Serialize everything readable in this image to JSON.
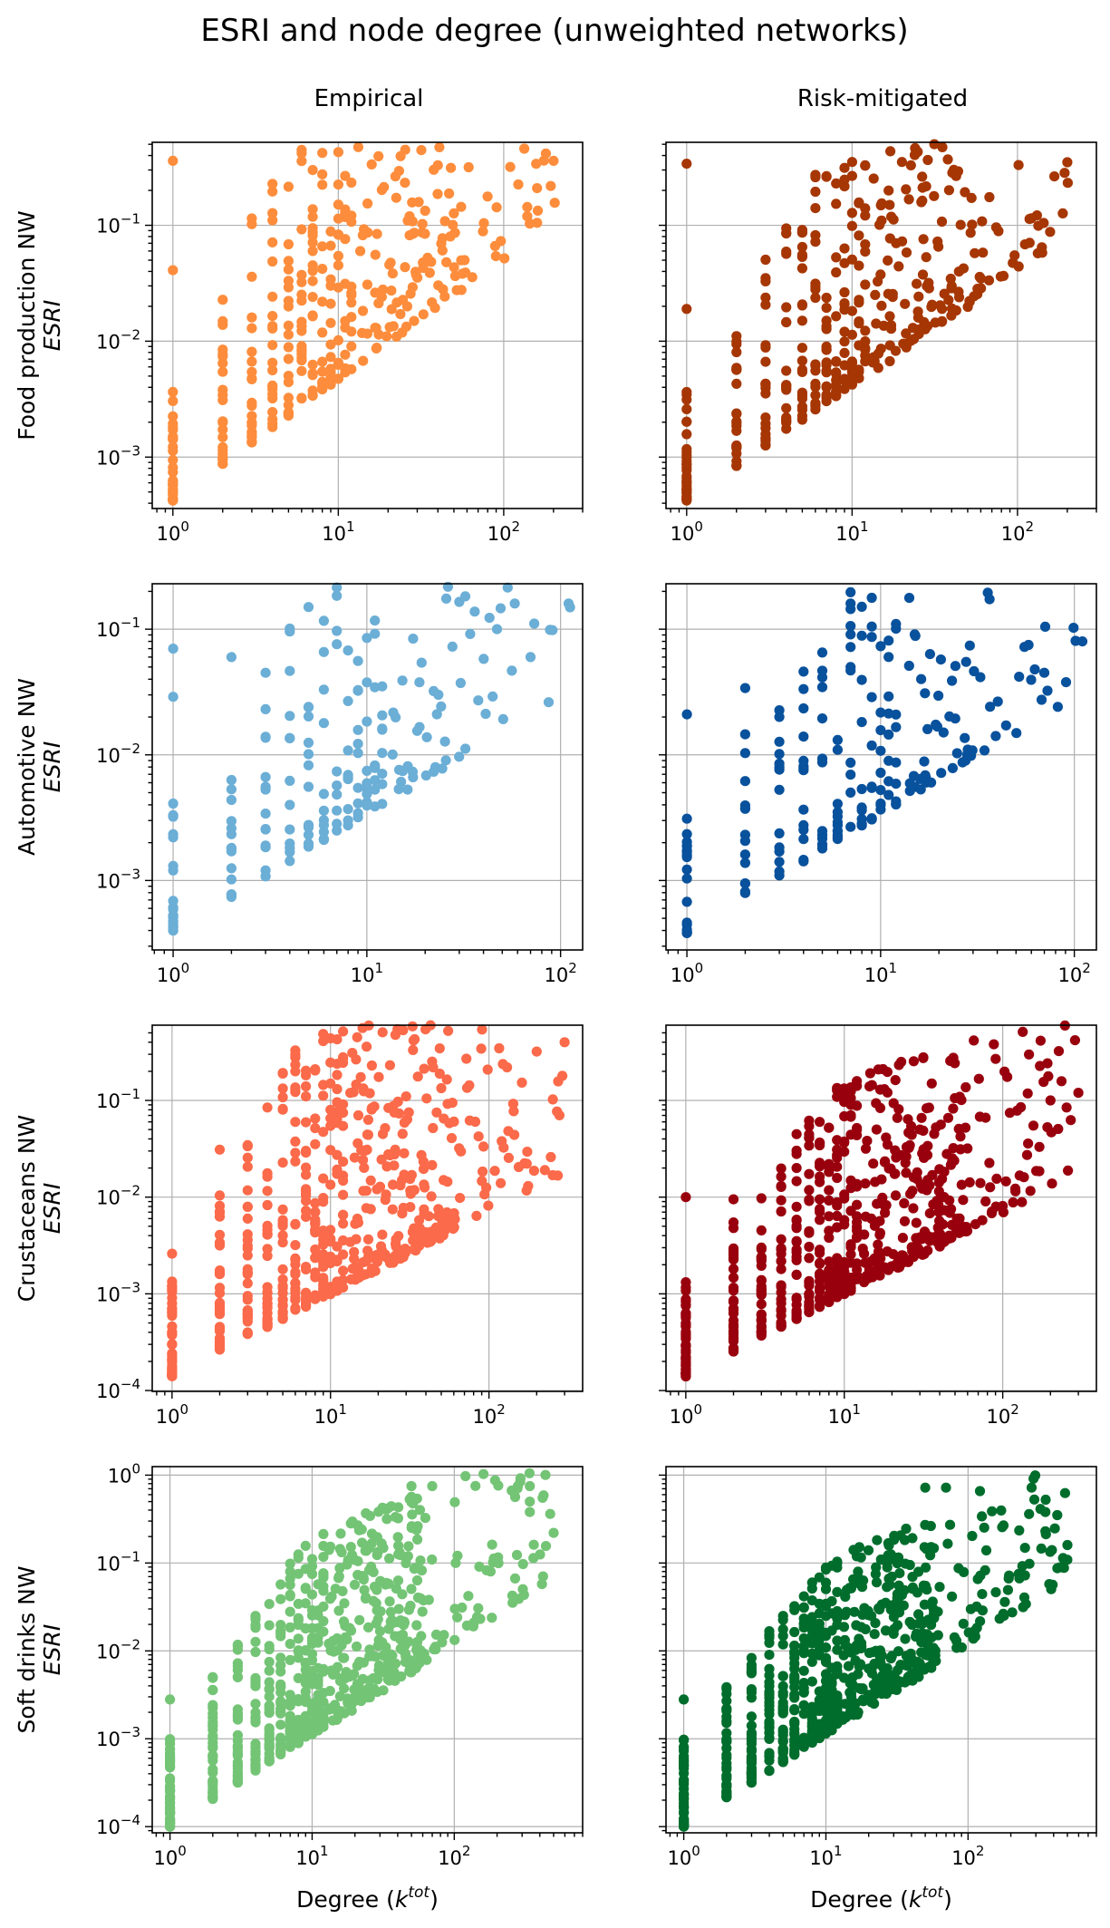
{
  "figure": {
    "title": "ESRI and node degree (unweighted networks)",
    "column_titles": [
      "Empirical",
      "Risk-mitigated"
    ],
    "row_titles": [
      "Food production NW",
      "Automotive NW",
      "Crustaceans NW",
      "Soft drinks NW"
    ],
    "y_axis_symbol": "ESRI",
    "x_axis_label_prefix": "Degree (",
    "x_axis_label_symbol": "k",
    "x_axis_label_superscript": "tot",
    "x_axis_label_suffix": ")"
  },
  "chart_data": [
    {
      "type": "scatter",
      "row": "Food production NW",
      "column": "Empirical",
      "color": "#fd8d3c",
      "xscale": "log",
      "yscale": "log",
      "xlim": [
        0.75,
        300
      ],
      "ylim": [
        0.00036,
        0.52
      ],
      "xticks": [
        1,
        10,
        100
      ],
      "yticks": [
        0.001,
        0.01,
        0.1
      ],
      "seed": 11,
      "k_range": [
        1,
        200
      ],
      "base": [
        0.00042,
        1.05
      ],
      "spread": [
        1.0,
        2.8
      ],
      "dense": 1.0,
      "outliers": [
        [
          1,
          0.36
        ],
        [
          200,
          0.36
        ],
        [
          1,
          0.041
        ],
        [
          27,
          0.082
        ],
        [
          96,
          0.073
        ],
        [
          58,
          0.05
        ],
        [
          45,
          0.048
        ],
        [
          3,
          0.036
        ],
        [
          7,
          0.033
        ]
      ]
    },
    {
      "type": "scatter",
      "row": "Food production NW",
      "column": "Risk-mitigated",
      "color": "#a63603",
      "xscale": "log",
      "yscale": "log",
      "xlim": [
        0.75,
        300
      ],
      "ylim": [
        0.00036,
        0.52
      ],
      "xticks": [
        1,
        10,
        100
      ],
      "yticks": [
        0.001,
        0.01,
        0.1
      ],
      "seed": 12,
      "k_range": [
        1,
        200
      ],
      "base": [
        0.00042,
        1.0
      ],
      "spread": [
        1.0,
        2.2
      ],
      "dense": 1.0,
      "outliers": [
        [
          1,
          0.34
        ],
        [
          200,
          0.35
        ],
        [
          27,
          0.076
        ],
        [
          96,
          0.055
        ],
        [
          58,
          0.028
        ],
        [
          3,
          0.035
        ],
        [
          40,
          0.03
        ],
        [
          1,
          0.019
        ]
      ]
    },
    {
      "type": "scatter",
      "row": "Automotive NW",
      "column": "Empirical",
      "color": "#6baed6",
      "xscale": "log",
      "yscale": "log",
      "xlim": [
        0.78,
        130
      ],
      "ylim": [
        0.00028,
        0.23
      ],
      "xticks": [
        1,
        10,
        100
      ],
      "yticks": [
        0.001,
        0.01,
        0.1
      ],
      "seed": 21,
      "k_range": [
        1,
        110
      ],
      "base": [
        0.00038,
        0.95
      ],
      "spread": [
        1.2,
        2.4
      ],
      "dense": 0.6,
      "outliers": [
        [
          1,
          0.07
        ],
        [
          1,
          0.029
        ],
        [
          110,
          0.16
        ],
        [
          30,
          0.165
        ],
        [
          58,
          0.16
        ],
        [
          3,
          0.045
        ],
        [
          2,
          0.06
        ],
        [
          11,
          0.092
        ],
        [
          47,
          0.1
        ],
        [
          70,
          0.06
        ]
      ]
    },
    {
      "type": "scatter",
      "row": "Automotive NW",
      "column": "Risk-mitigated",
      "color": "#08519c",
      "xscale": "log",
      "yscale": "log",
      "xlim": [
        0.78,
        130
      ],
      "ylim": [
        0.00028,
        0.23
      ],
      "xticks": [
        1,
        10,
        100
      ],
      "yticks": [
        0.001,
        0.01,
        0.1
      ],
      "seed": 22,
      "k_range": [
        1,
        110
      ],
      "base": [
        0.00038,
        0.95
      ],
      "spread": [
        1.0,
        2.0
      ],
      "dense": 0.6,
      "outliers": [
        [
          1,
          0.021
        ],
        [
          12,
          0.11
        ],
        [
          110,
          0.08
        ],
        [
          58,
          0.075
        ],
        [
          4,
          0.046
        ],
        [
          7,
          0.05
        ],
        [
          2,
          0.034
        ],
        [
          70,
          0.045
        ]
      ]
    },
    {
      "type": "scatter",
      "row": "Crustaceans NW",
      "column": "Empirical",
      "color": "#fb6a4a",
      "xscale": "log",
      "yscale": "log",
      "xlim": [
        0.75,
        390
      ],
      "ylim": [
        9.8e-05,
        0.6
      ],
      "xticks": [
        1,
        10,
        100
      ],
      "yticks": [
        0.0001,
        0.001,
        0.01,
        0.1
      ],
      "seed": 31,
      "k_range": [
        1,
        300
      ],
      "base": [
        0.00014,
        0.85
      ],
      "spread": [
        1.0,
        3.0
      ],
      "dense": 1.4,
      "outliers": [
        [
          1,
          0.0026
        ],
        [
          1,
          0.00015
        ],
        [
          300,
          0.4
        ],
        [
          200,
          0.32
        ],
        [
          130,
          0.22
        ],
        [
          72,
          0.27
        ],
        [
          30,
          0.11
        ],
        [
          6,
          0.06
        ],
        [
          2,
          0.031
        ],
        [
          15,
          0.07
        ]
      ]
    },
    {
      "type": "scatter",
      "row": "Crustaceans NW",
      "column": "Risk-mitigated",
      "color": "#99000d",
      "xscale": "log",
      "yscale": "log",
      "xlim": [
        0.75,
        390
      ],
      "ylim": [
        9.8e-05,
        0.6
      ],
      "xticks": [
        1,
        10,
        100
      ],
      "yticks": [
        0.0001,
        0.001,
        0.01,
        0.1
      ],
      "seed": 32,
      "k_range": [
        1,
        300
      ],
      "base": [
        0.00014,
        0.85
      ],
      "spread": [
        1.0,
        2.2
      ],
      "dense": 1.4,
      "outliers": [
        [
          1,
          0.01
        ],
        [
          1,
          0.00015
        ],
        [
          300,
          0.12
        ],
        [
          200,
          0.1
        ],
        [
          130,
          0.085
        ],
        [
          5,
          0.02
        ],
        [
          30,
          0.05
        ],
        [
          2,
          0.0095
        ]
      ]
    },
    {
      "type": "scatter",
      "row": "Soft drinks NW",
      "column": "Empirical",
      "color": "#74c476",
      "xscale": "log",
      "yscale": "log",
      "xlim": [
        0.75,
        800
      ],
      "ylim": [
        8.5e-05,
        1.25
      ],
      "xticks": [
        1,
        10,
        100
      ],
      "yticks": [
        0.0001,
        0.001,
        0.01,
        0.1,
        1
      ],
      "seed": 41,
      "k_range": [
        1,
        500
      ],
      "base": [
        0.0001,
        1.05
      ],
      "spread": [
        1.0,
        2.2
      ],
      "dense": 1.6,
      "outliers": [
        [
          1,
          0.0028
        ],
        [
          1,
          0.00011
        ],
        [
          50,
          0.75
        ],
        [
          70,
          0.75
        ],
        [
          280,
          0.75
        ],
        [
          340,
          0.75
        ],
        [
          340,
          0.5
        ],
        [
          340,
          0.38
        ],
        [
          500,
          0.22
        ],
        [
          180,
          0.08
        ],
        [
          7,
          0.012
        ],
        [
          2,
          0.0009
        ]
      ]
    },
    {
      "type": "scatter",
      "row": "Soft drinks NW",
      "column": "Risk-mitigated",
      "color": "#006d2c",
      "xscale": "log",
      "yscale": "log",
      "xlim": [
        0.75,
        800
      ],
      "ylim": [
        8.5e-05,
        1.25
      ],
      "xticks": [
        1,
        10,
        100
      ],
      "yticks": [
        0.0001,
        0.001,
        0.01,
        0.1,
        1
      ],
      "seed": 42,
      "k_range": [
        1,
        500
      ],
      "base": [
        0.0001,
        1.05
      ],
      "spread": [
        1.0,
        1.9
      ],
      "dense": 1.6,
      "outliers": [
        [
          1,
          0.0028
        ],
        [
          1,
          0.00011
        ],
        [
          50,
          0.72
        ],
        [
          70,
          0.72
        ],
        [
          280,
          0.72
        ],
        [
          350,
          0.38
        ],
        [
          350,
          0.23
        ],
        [
          500,
          0.16
        ],
        [
          5,
          0.025
        ],
        [
          10,
          0.025
        ]
      ]
    }
  ]
}
